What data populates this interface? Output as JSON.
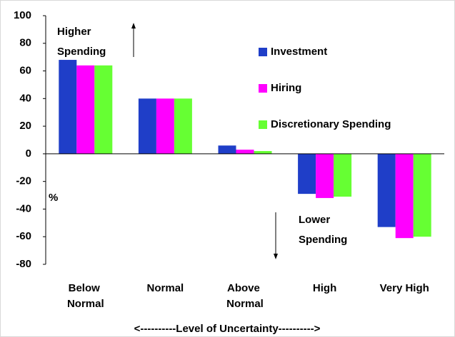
{
  "chart_data": {
    "type": "bar",
    "categories": [
      "Below Normal",
      "Normal",
      "Above Normal",
      "High",
      "Very High"
    ],
    "series": [
      {
        "name": "Investment",
        "color": "#1f3ec8",
        "values": [
          68,
          40,
          6,
          -29,
          -53
        ]
      },
      {
        "name": "Hiring",
        "color": "#ff00ff",
        "values": [
          64,
          40,
          3,
          -32,
          -61
        ]
      },
      {
        "name": "Discretionary Spending",
        "color": "#66ff33",
        "values": [
          64,
          40,
          2,
          -31,
          -60
        ]
      }
    ],
    "ylabel": "%",
    "xlabel": "<----------Level of Uncertainty---------->",
    "annotations": [
      "Higher Spending",
      "Lower Spending"
    ],
    "ylim": [
      -80,
      100
    ],
    "yticks": [
      -80,
      -60,
      -40,
      -20,
      0,
      20,
      40,
      60,
      80,
      100
    ],
    "legend": "upper right"
  }
}
